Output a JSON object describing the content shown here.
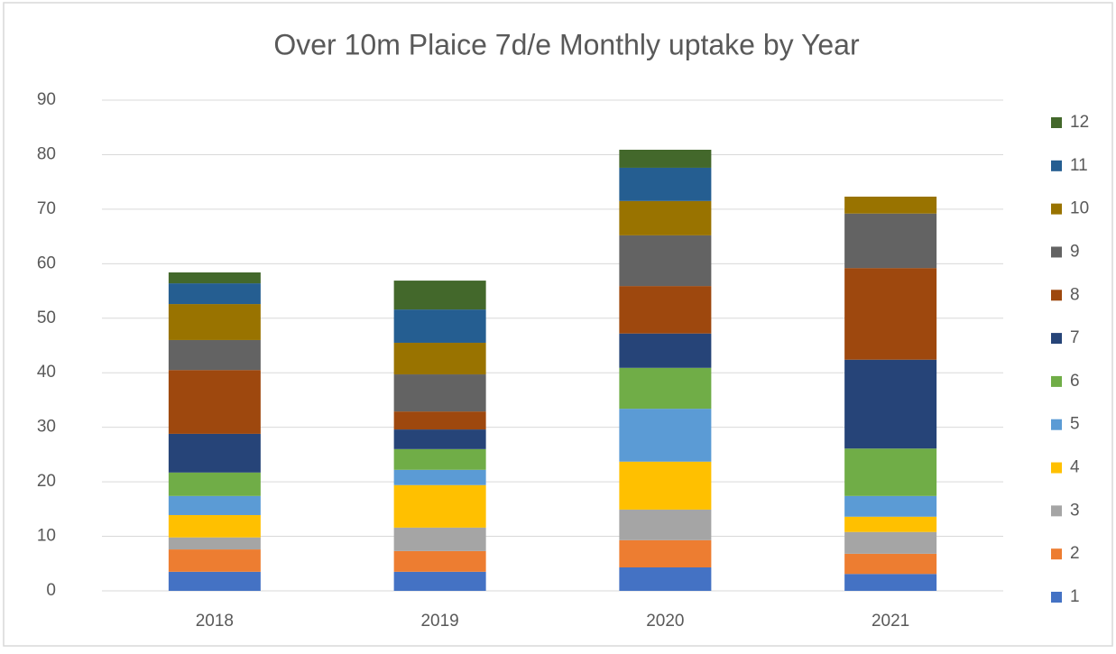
{
  "chart_data": {
    "type": "stacked_bar",
    "title": "Over 10m Plaice 7d/e Monthly uptake by Year",
    "categories": [
      "2018",
      "2019",
      "2020",
      "2021"
    ],
    "series": [
      {
        "name": "1",
        "color": "#4472c4",
        "values": [
          3.5,
          3.5,
          4.3,
          3.1
        ]
      },
      {
        "name": "2",
        "color": "#ed7d31",
        "values": [
          4.1,
          3.8,
          5.0,
          3.7
        ]
      },
      {
        "name": "3",
        "color": "#a5a5a5",
        "values": [
          2.2,
          4.3,
          5.6,
          4.0
        ]
      },
      {
        "name": "4",
        "color": "#ffc000",
        "values": [
          4.1,
          7.8,
          8.8,
          2.8
        ]
      },
      {
        "name": "5",
        "color": "#5b9bd5",
        "values": [
          3.5,
          2.8,
          9.7,
          3.8
        ]
      },
      {
        "name": "6",
        "color": "#70ad47",
        "values": [
          4.3,
          3.8,
          7.5,
          8.7
        ]
      },
      {
        "name": "7",
        "color": "#264478",
        "values": [
          7.1,
          3.6,
          6.3,
          16.3
        ]
      },
      {
        "name": "8",
        "color": "#9e480e",
        "values": [
          11.7,
          3.3,
          8.7,
          16.8
        ]
      },
      {
        "name": "9",
        "color": "#636363",
        "values": [
          5.5,
          6.8,
          9.3,
          10.0
        ]
      },
      {
        "name": "10",
        "color": "#997300",
        "values": [
          6.6,
          5.8,
          6.3,
          3.1
        ]
      },
      {
        "name": "11",
        "color": "#255e91",
        "values": [
          3.8,
          6.1,
          6.1,
          0
        ]
      },
      {
        "name": "12",
        "color": "#43682b",
        "values": [
          2.0,
          5.3,
          3.3,
          0
        ]
      }
    ],
    "ylim": [
      0,
      90
    ],
    "yticks": [
      0,
      10,
      20,
      30,
      40,
      50,
      60,
      70,
      80,
      90
    ],
    "grid": true,
    "legend": "right"
  }
}
